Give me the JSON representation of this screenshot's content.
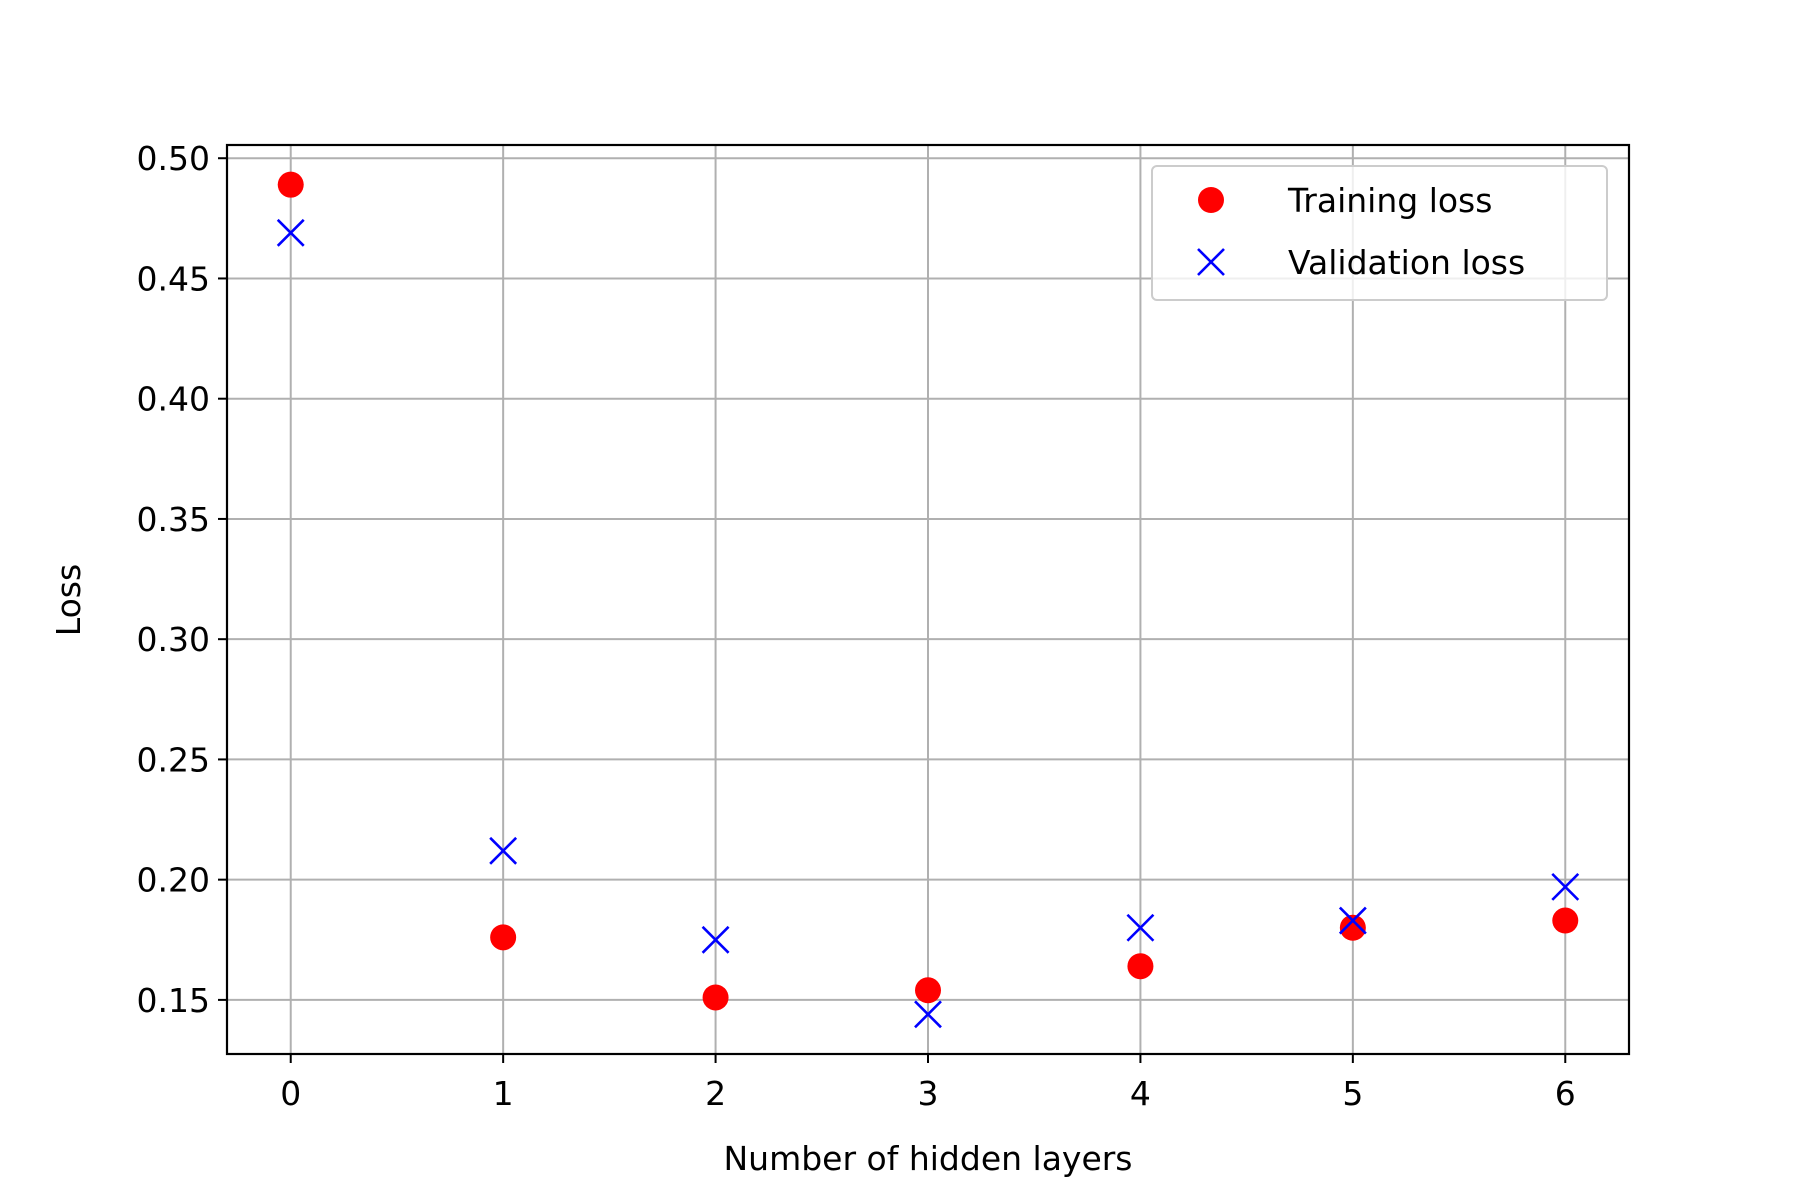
{
  "chart_data": {
    "type": "scatter",
    "xlabel": "Number of hidden layers",
    "ylabel": "Loss",
    "x": [
      0,
      1,
      2,
      3,
      4,
      5,
      6
    ],
    "xlim": [
      -0.3,
      6.3
    ],
    "ylim": [
      0.1275,
      0.5055
    ],
    "xticks": [
      0,
      1,
      2,
      3,
      4,
      5,
      6
    ],
    "yticks": [
      0.15,
      0.2,
      0.25,
      0.3,
      0.35,
      0.4,
      0.45,
      0.5
    ],
    "ytick_labels": [
      "0.15",
      "0.20",
      "0.25",
      "0.30",
      "0.35",
      "0.40",
      "0.45",
      "0.50"
    ],
    "grid": true,
    "legend": {
      "position": "top-right"
    },
    "series": [
      {
        "name": "Training loss",
        "marker": "circle",
        "color": "#ff0000",
        "values": [
          0.489,
          0.176,
          0.151,
          0.154,
          0.164,
          0.18,
          0.183
        ]
      },
      {
        "name": "Validation loss",
        "marker": "x",
        "color": "#0000ff",
        "values": [
          0.469,
          0.212,
          0.175,
          0.144,
          0.18,
          0.183,
          0.197
        ]
      }
    ]
  }
}
